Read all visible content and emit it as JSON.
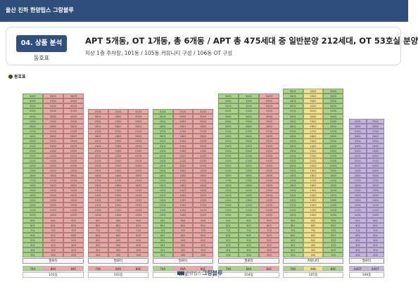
{
  "header": {
    "title": "울산 진하 한양립스 그랑블루"
  },
  "section_badge": "04. 상품 분석",
  "section_sub": "동호표",
  "headline": "APT 5개동, OT 1개동, 총 6개동 / APT 총 475세대 중 일반분양 212세대, OT 53호실 분양",
  "subline": "지상 1층 주차장, 101동 / 105동 커뮤니티 구성 / 106동 OT 구성",
  "area_title": "동호표",
  "buildings": [
    {
      "name": "101동",
      "top_floor": 34,
      "footer": [
        "74A",
        "84A",
        "84C"
      ],
      "ot": "필로티",
      "colors": [
        "g",
        "r",
        "r"
      ]
    },
    {
      "name": "102동",
      "top_floor": 31,
      "footer": [
        "74A",
        "84A",
        "84C"
      ],
      "ot": "필로티",
      "colors": [
        "r",
        "r",
        "r"
      ]
    },
    {
      "name": "103동",
      "top_floor": 31,
      "footer": [
        "74A",
        "84A",
        "84C"
      ],
      "ot": "필로티",
      "colors": [
        "g",
        "r",
        "r"
      ]
    },
    {
      "name": "104동",
      "top_floor": 34,
      "footer": [
        "74A",
        "84A",
        "84C"
      ],
      "ot": "필로티",
      "colors": [
        "g",
        "g",
        "r"
      ]
    },
    {
      "name": "105동",
      "top_floor": 35,
      "footer": [
        "74A",
        "84B",
        "84C"
      ],
      "ot": "커뮤니티",
      "colors": [
        "g",
        "y",
        "g"
      ]
    },
    {
      "name": "106동",
      "top_floor": 29,
      "footer": [
        "84OT",
        "84OT"
      ],
      "ot": "필로티",
      "colors": [
        "p",
        "p"
      ]
    }
  ],
  "logo": {
    "brand": "한양립스",
    "name": "그랑블루"
  }
}
